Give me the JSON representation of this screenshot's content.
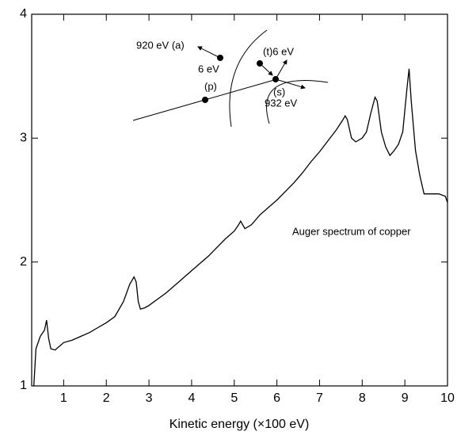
{
  "chart_data": {
    "type": "line",
    "x_label": "Kinetic energy (×100 eV)",
    "annotations": [
      "920 eV (a)",
      "6 eV",
      "(t)6 eV",
      "(p)",
      "(s)",
      "932 eV",
      "Auger spectrum of copper"
    ],
    "x": [
      0.3,
      0.35,
      0.45,
      0.55,
      0.6,
      0.65,
      0.7,
      0.8,
      0.9,
      1.0,
      1.2,
      1.4,
      1.6,
      1.8,
      2.0,
      2.2,
      2.4,
      2.55,
      2.65,
      2.7,
      2.75,
      2.8,
      2.9,
      3.0,
      3.2,
      3.4,
      3.6,
      3.8,
      4.0,
      4.2,
      4.4,
      4.6,
      4.8,
      5.0,
      5.1,
      5.15,
      5.25,
      5.4,
      5.6,
      5.8,
      6.0,
      6.2,
      6.4,
      6.6,
      6.8,
      7.0,
      7.2,
      7.4,
      7.55,
      7.6,
      7.65,
      7.75,
      7.85,
      8.0,
      8.1,
      8.2,
      8.3,
      8.35,
      8.45,
      8.55,
      8.65,
      8.75,
      8.85,
      8.95,
      9.05,
      9.1,
      9.15,
      9.25,
      9.35,
      9.45,
      9.6,
      9.8,
      9.95,
      10.0
    ],
    "series": [
      {
        "color": "#000000",
        "values": [
          1.0,
          1.3,
          1.4,
          1.45,
          1.53,
          1.38,
          1.3,
          1.29,
          1.32,
          1.35,
          1.37,
          1.4,
          1.43,
          1.47,
          1.51,
          1.56,
          1.68,
          1.82,
          1.88,
          1.84,
          1.68,
          1.62,
          1.63,
          1.65,
          1.7,
          1.75,
          1.81,
          1.87,
          1.93,
          1.99,
          2.05,
          2.12,
          2.19,
          2.25,
          2.3,
          2.33,
          2.27,
          2.3,
          2.38,
          2.44,
          2.5,
          2.57,
          2.64,
          2.72,
          2.81,
          2.89,
          2.98,
          3.07,
          3.15,
          3.18,
          3.15,
          3.0,
          2.97,
          3.0,
          3.05,
          3.2,
          3.33,
          3.3,
          3.05,
          2.93,
          2.86,
          2.9,
          2.95,
          3.05,
          3.4,
          3.56,
          3.3,
          2.9,
          2.7,
          2.55,
          2.55,
          2.55,
          2.53,
          2.48
        ]
      }
    ],
    "xlim": [
      0.25,
      10
    ],
    "ylim": [
      1,
      4
    ],
    "xticks": [
      1,
      2,
      3,
      4,
      5,
      6,
      7,
      8,
      9,
      10
    ],
    "yticks": [
      1,
      2,
      3,
      4
    ]
  }
}
